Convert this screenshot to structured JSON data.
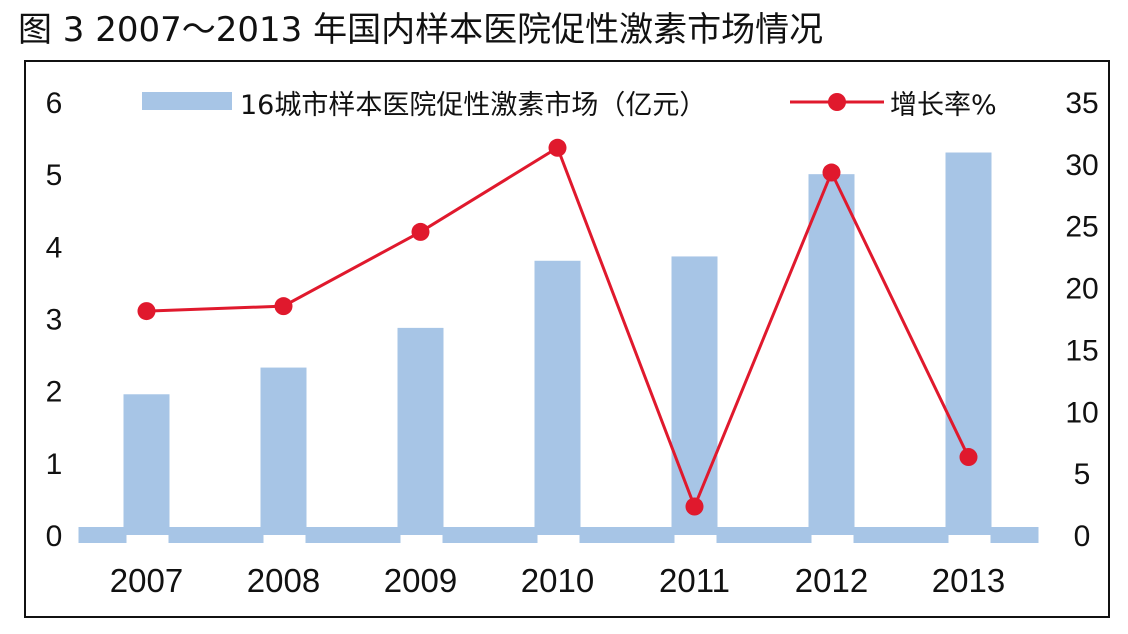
{
  "title": "图 3  2007～2013 年国内样本医院促性激素市场情况",
  "chart_data": {
    "type": "bar",
    "categories": [
      "2007",
      "2008",
      "2009",
      "2010",
      "2011",
      "2012",
      "2013"
    ],
    "series": [
      {
        "name": "16城市样本医院促性激素市场（亿元）",
        "type": "bar",
        "axis": "left",
        "values": [
          1.95,
          2.32,
          2.87,
          3.8,
          3.86,
          5.0,
          5.3
        ],
        "color": "#a7c5e6"
      },
      {
        "name": "增长率%",
        "type": "line",
        "axis": "right",
        "values": [
          18.1,
          18.5,
          24.5,
          31.3,
          2.3,
          29.3,
          6.3
        ],
        "color": "#e0192d"
      }
    ],
    "y_left": {
      "ylim": [
        0,
        6
      ],
      "ticks": [
        "0",
        "1",
        "2",
        "3",
        "4",
        "5",
        "6"
      ]
    },
    "y_right": {
      "ylim": [
        0,
        35
      ],
      "ticks": [
        "0",
        "5",
        "10",
        "15",
        "20",
        "25",
        "30",
        "35"
      ]
    },
    "legend_position": "top",
    "grid": false
  }
}
